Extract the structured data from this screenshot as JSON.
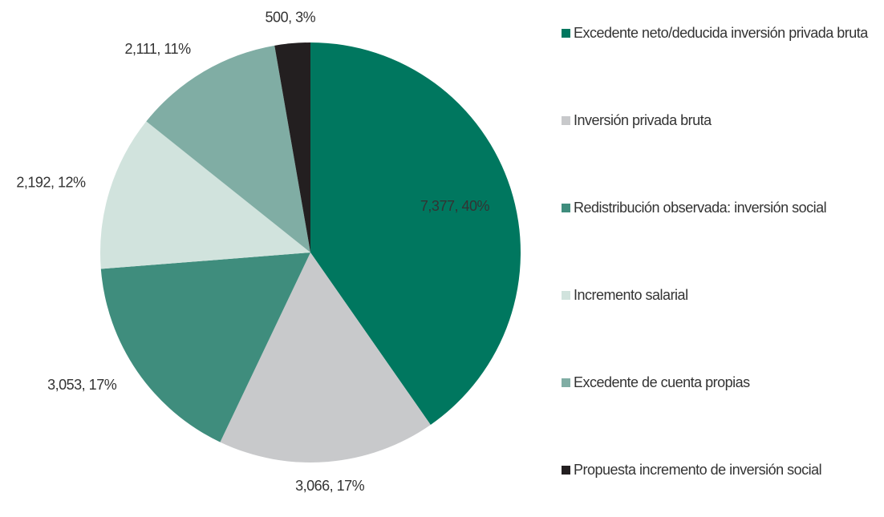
{
  "chart_data": {
    "type": "pie",
    "categories": [
      "Excedente neto/deducida inversión privada bruta",
      "Inversión privada bruta",
      "Redistribución observada: inversión social",
      "Incremento salarial",
      "Excedente de cuenta propias",
      "Propuesta incremento de inversión social"
    ],
    "values": [
      7377,
      3066,
      3053,
      2192,
      2111,
      500
    ],
    "value_labels": [
      "7,377, 40%",
      "3,066, 17%",
      "3,053, 17%",
      "2,192, 12%",
      "2,111, 11%",
      "500, 3%"
    ],
    "colors": [
      "#00775f",
      "#c8c9cb",
      "#3f8d7d",
      "#d1e3dd",
      "#80ada4",
      "#231f20"
    ],
    "legend": "right"
  }
}
